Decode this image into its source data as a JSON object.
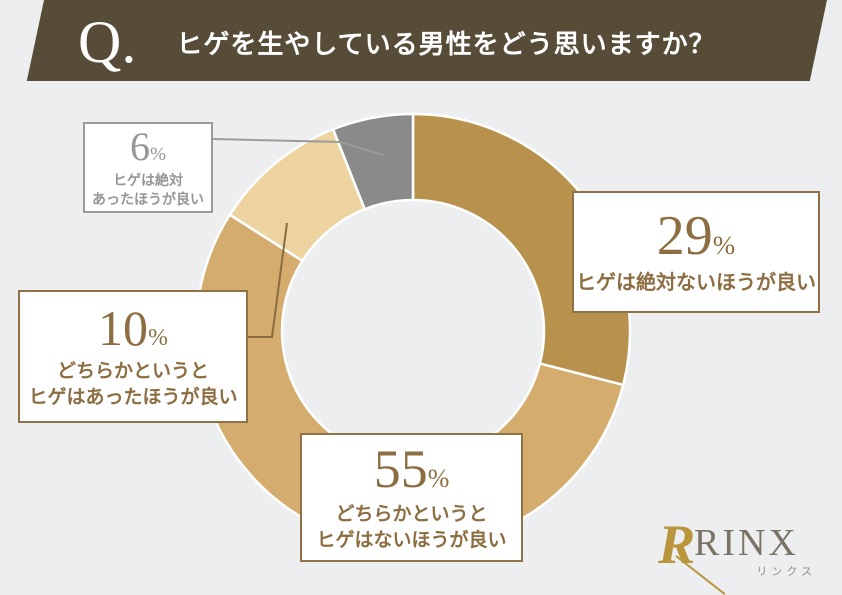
{
  "header": {
    "q_label": "Q.",
    "title": "ヒゲを生やしている男性をどう思いますか？"
  },
  "chart_data": {
    "type": "pie",
    "donut": true,
    "title": "ヒゲを生やしている男性をどう思いますか？",
    "categories": [
      "ヒゲは絶対ないほうが良い",
      "どちらかというとヒゲはないほうが良い",
      "どちらかというとヒゲはあったほうが良い",
      "ヒゲは絶対あったほうが良い"
    ],
    "values": [
      29,
      55,
      10,
      6
    ],
    "unit": "%",
    "colors": [
      "#b8924d",
      "#d3ac6e",
      "#edd3a0",
      "#8a8a8a"
    ],
    "start_angle_deg": 0,
    "direction": "clockwise",
    "legend_position": "callout-boxes"
  },
  "labels": {
    "no_beard_strong": {
      "value": "29",
      "unit": "%",
      "line1": "ヒゲは絶対ないほうが良い"
    },
    "no_beard_lean": {
      "value": "55",
      "unit": "%",
      "line1": "どちらかというと",
      "line2": "ヒゲはないほうが良い"
    },
    "beard_lean": {
      "value": "10",
      "unit": "%",
      "line1": "どちらかというと",
      "line2": "ヒゲはあったほうが良い"
    },
    "beard_strong": {
      "value": "6",
      "unit": "%",
      "line1": "ヒゲは絶対",
      "line2": "あったほうが良い"
    }
  },
  "logo": {
    "symbol": "R",
    "name": "RINX",
    "kana": "リンクス"
  },
  "colors": {
    "banner": "#574c38",
    "background": "#eceef0",
    "accent_brown": "#8d6e42",
    "accent_gray": "#969696",
    "box_border_brown": "#8f7347",
    "box_border_gray": "#9b9b9b"
  }
}
